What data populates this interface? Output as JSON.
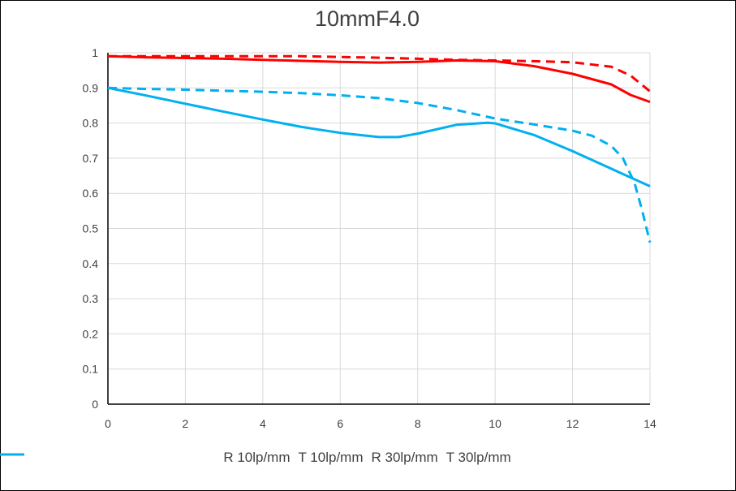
{
  "chart_data": {
    "type": "line",
    "title": "10mmF4.0",
    "xlabel": "",
    "ylabel": "",
    "xlim": [
      0,
      14
    ],
    "ylim": [
      0,
      1
    ],
    "x_ticks": [
      0,
      2,
      4,
      6,
      8,
      10,
      12,
      14
    ],
    "y_ticks": [
      0,
      0.1,
      0.2,
      0.3,
      0.4,
      0.5,
      0.6,
      0.7,
      0.8,
      0.9,
      1
    ],
    "grid": true,
    "legend_position": "bottom",
    "series": [
      {
        "name": "R 10lp/mm",
        "color": "#ff0000",
        "dash": "solid",
        "x": [
          0,
          1,
          2,
          3,
          4,
          5,
          6,
          7,
          8,
          9,
          10,
          11,
          12,
          13,
          13.5,
          14
        ],
        "y": [
          0.99,
          0.987,
          0.985,
          0.983,
          0.98,
          0.977,
          0.974,
          0.972,
          0.974,
          0.978,
          0.976,
          0.962,
          0.94,
          0.91,
          0.88,
          0.86
        ]
      },
      {
        "name": "T 10lp/mm",
        "color": "#ff0000",
        "dash": "dashed",
        "x": [
          0,
          1,
          2,
          3,
          4,
          5,
          6,
          7,
          8,
          9,
          10,
          11,
          12,
          13,
          13.5,
          14
        ],
        "y": [
          0.99,
          0.99,
          0.99,
          0.99,
          0.99,
          0.99,
          0.988,
          0.986,
          0.983,
          0.98,
          0.978,
          0.976,
          0.973,
          0.96,
          0.935,
          0.89
        ]
      },
      {
        "name": "R 30lp/mm",
        "color": "#00b0f0",
        "dash": "solid",
        "x": [
          0,
          1,
          2,
          3,
          4,
          5,
          6,
          7,
          7.5,
          8,
          9,
          9.8,
          10,
          11,
          12,
          13,
          14
        ],
        "y": [
          0.9,
          0.878,
          0.855,
          0.832,
          0.81,
          0.789,
          0.772,
          0.76,
          0.76,
          0.77,
          0.795,
          0.801,
          0.799,
          0.766,
          0.72,
          0.67,
          0.62
        ]
      },
      {
        "name": "T 30lp/mm",
        "color": "#00b0f0",
        "dash": "dashed",
        "x": [
          0,
          1,
          2,
          3,
          4,
          5,
          6,
          7,
          8,
          9,
          10,
          11,
          12,
          12.5,
          13,
          13.3,
          13.6,
          13.8,
          14
        ],
        "y": [
          0.9,
          0.897,
          0.895,
          0.892,
          0.889,
          0.885,
          0.879,
          0.871,
          0.857,
          0.837,
          0.813,
          0.796,
          0.778,
          0.764,
          0.735,
          0.7,
          0.63,
          0.55,
          0.46
        ]
      }
    ]
  }
}
